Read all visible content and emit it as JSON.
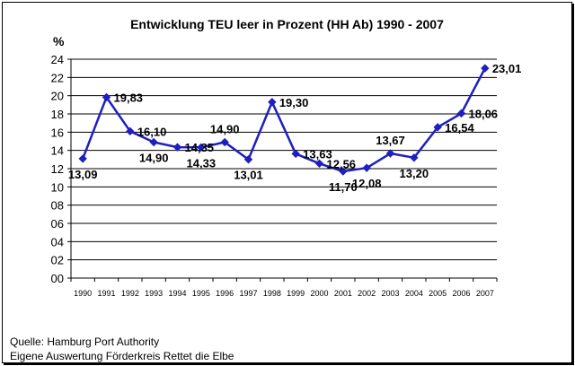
{
  "chart_data": {
    "type": "line",
    "title": "Entwicklung TEU leer in Prozent (HH Ab) 1990 - 2007",
    "ylabel": "%",
    "xlabel": "",
    "ylim": [
      0,
      24
    ],
    "yticks": [
      "00",
      "02",
      "04",
      "06",
      "08",
      "10",
      "12",
      "14",
      "16",
      "18",
      "20",
      "22",
      "24"
    ],
    "categories": [
      "1990",
      "1991",
      "1992",
      "1993",
      "1994",
      "1995",
      "1996",
      "1997",
      "1998",
      "1999",
      "2000",
      "2001",
      "2002",
      "2003",
      "2004",
      "2005",
      "2006",
      "2007"
    ],
    "series": [
      {
        "values": [
          13.09,
          19.83,
          16.1,
          14.9,
          14.35,
          14.33,
          14.9,
          13.01,
          19.3,
          13.63,
          12.56,
          11.7,
          12.08,
          13.67,
          13.2,
          16.54,
          18.06,
          23.01
        ],
        "labels": [
          "13,09",
          "19,83",
          "16,10",
          "14,90",
          "14,35",
          "14,33",
          "14,90",
          "13,01",
          "19,30",
          "13,63",
          "12,56",
          "11,70",
          "12,08",
          "13,67",
          "13,20",
          "16,54",
          "18,06",
          "23,01"
        ],
        "color": "#1f1fbf"
      }
    ],
    "grid": true,
    "legend": "none"
  },
  "source": {
    "line1": "Quelle: Hamburg Port Authority",
    "line2": "Eigene Auswertung Förderkreis Rettet die Elbe"
  }
}
